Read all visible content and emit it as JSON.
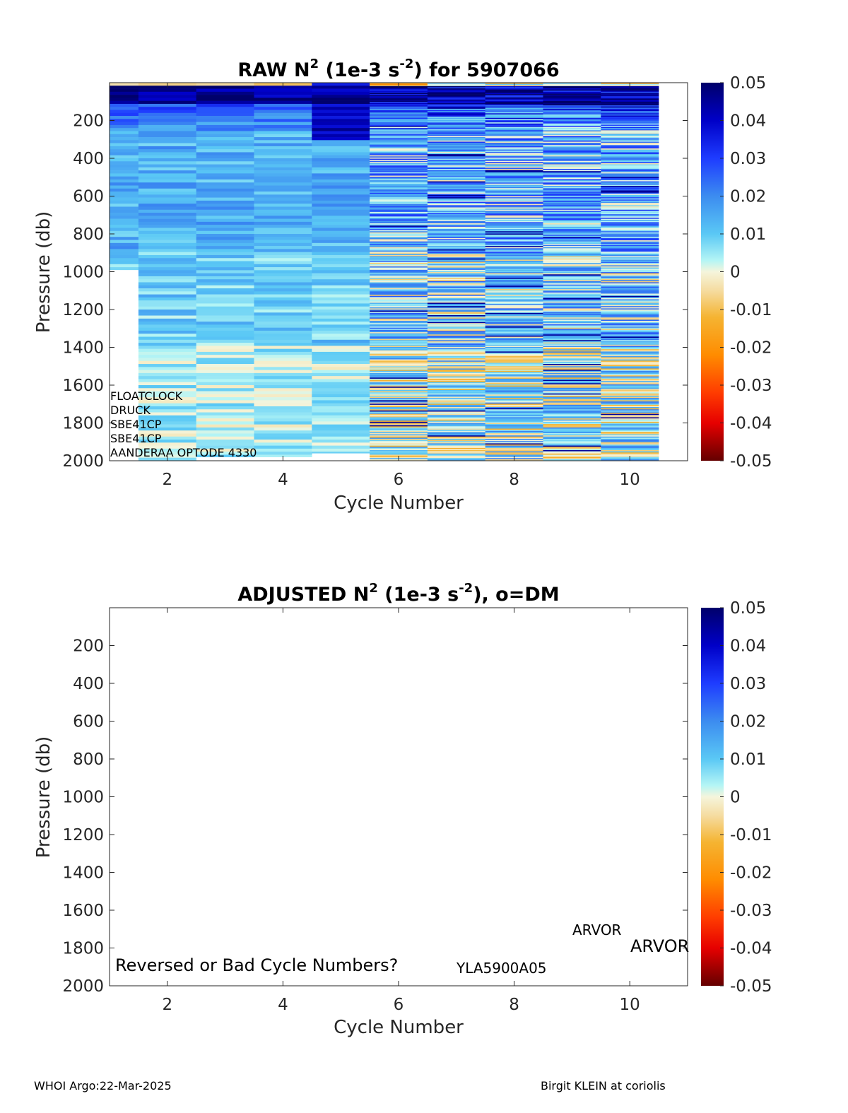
{
  "chart_data": [
    {
      "type": "heatmap",
      "title_parts": [
        "RAW N",
        "2",
        " (1e-3 s",
        "-2",
        ") for 5907066"
      ],
      "xlabel": "Cycle Number",
      "ylabel": "Pressure (db)",
      "xlim": [
        1,
        11
      ],
      "ylim": [
        0,
        2000
      ],
      "y_reversed": true,
      "x_ticks": [
        "2",
        "4",
        "6",
        "8",
        "10"
      ],
      "y_ticks": [
        "200",
        "400",
        "600",
        "800",
        "1000",
        "1200",
        "1400",
        "1600",
        "1800",
        "2000"
      ],
      "colorbar": {
        "range": [
          -0.05,
          0.05
        ],
        "ticks": [
          "0.05",
          "0.04",
          "0.03",
          "0.02",
          "0.01",
          "0",
          "-0.01",
          "-0.02",
          "-0.03",
          "-0.04",
          "-0.05"
        ]
      },
      "cycles": [
        1,
        2,
        3,
        4,
        5,
        6,
        7,
        8,
        9,
        10
      ],
      "max_pressure": [
        990,
        2000,
        1980,
        1980,
        1960,
        2000,
        2000,
        2000,
        2000,
        2000
      ],
      "annotations": [
        "FLOATCLOCK",
        "DRUCK",
        "SBE41CP",
        "SBE41CP",
        "AANDERAA OPTODE 4330"
      ]
    },
    {
      "type": "heatmap",
      "title_parts": [
        "ADJUSTED N",
        "2",
        " (1e-3 s",
        "-2",
        "), o=DM"
      ],
      "xlabel": "Cycle Number",
      "ylabel": "Pressure (db)",
      "xlim": [
        1,
        11
      ],
      "ylim": [
        0,
        2000
      ],
      "y_reversed": true,
      "x_ticks": [
        "2",
        "4",
        "6",
        "8",
        "10"
      ],
      "y_ticks": [
        "200",
        "400",
        "600",
        "800",
        "1000",
        "1200",
        "1400",
        "1600",
        "1800",
        "2000"
      ],
      "colorbar": {
        "range": [
          -0.05,
          0.05
        ],
        "ticks": [
          "0.05",
          "0.04",
          "0.03",
          "0.02",
          "0.01",
          "0",
          "-0.01",
          "-0.02",
          "-0.03",
          "-0.04",
          "-0.05"
        ]
      },
      "annotations": {
        "warning": "Reversed or Bad Cycle Numbers?",
        "serial": "YLA5900A05",
        "model_small": "ARVOR",
        "model_large": "ARVOR"
      }
    }
  ],
  "footer": {
    "left": "WHOI Argo:22-Mar-2025",
    "right": "Birgit KLEIN at coriolis"
  }
}
